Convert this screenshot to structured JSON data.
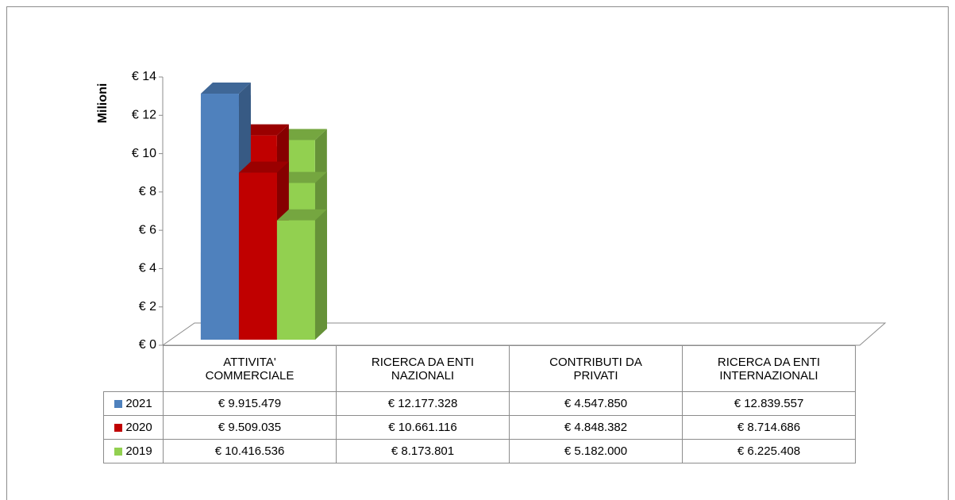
{
  "chart_data": {
    "type": "bar",
    "y_label": "Milioni",
    "categories": [
      "ATTIVITA' COMMERCIALE",
      "RICERCA DA ENTI NAZIONALI",
      "CONTRIBUTI DA PRIVATI",
      "RICERCA DA ENTI INTERNAZIONALI"
    ],
    "series": [
      {
        "name": "2021",
        "color": "#4f81bd",
        "values": [
          9.915479,
          12.177328,
          4.54785,
          12.839557
        ],
        "value_labels": [
          "€ 9.915.479",
          "€ 12.177.328",
          "€ 4.547.850",
          "€ 12.839.557"
        ]
      },
      {
        "name": "2020",
        "color": "#c00000",
        "values": [
          9.509035,
          10.661116,
          4.848382,
          8.714686
        ],
        "value_labels": [
          "€ 9.509.035",
          "€ 10.661.116",
          "€ 4.848.382",
          "€ 8.714.686"
        ]
      },
      {
        "name": "2019",
        "color": "#92d050",
        "values": [
          10.416536,
          8.173801,
          5.182,
          6.225408
        ],
        "value_labels": [
          "€ 10.416.536",
          "€ 8.173.801",
          "€ 5.182.000",
          "€ 6.225.408"
        ]
      }
    ],
    "ylim": [
      0,
      14
    ],
    "yticks": [
      {
        "value": 0,
        "label": "€ 0"
      },
      {
        "value": 2,
        "label": "€ 2"
      },
      {
        "value": 4,
        "label": "€ 4"
      },
      {
        "value": 6,
        "label": "€ 6"
      },
      {
        "value": 8,
        "label": "€ 8"
      },
      {
        "value": 10,
        "label": "€ 10"
      },
      {
        "value": 12,
        "label": "€ 12"
      },
      {
        "value": 14,
        "label": "€ 14"
      }
    ]
  }
}
